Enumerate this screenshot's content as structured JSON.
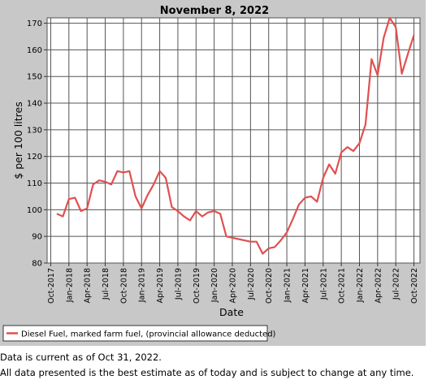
{
  "chart_data": {
    "type": "line",
    "title": "November 8, 2022",
    "xlabel": "Date",
    "ylabel": "$ per 100 litres",
    "ylim": [
      80,
      172
    ],
    "yticks": [
      80,
      90,
      100,
      110,
      120,
      130,
      140,
      150,
      160,
      170
    ],
    "xticks": [
      "Oct-2017",
      "Jan-2018",
      "Apr-2018",
      "Jul-2018",
      "Oct-2018",
      "Jan-2019",
      "Apr-2019",
      "Jul-2019",
      "Oct-2019",
      "Jan-2020",
      "Apr-2020",
      "Jul-2020",
      "Oct-2020",
      "Jan-2021",
      "Apr-2021",
      "Jul-2021",
      "Oct-2021",
      "Jan-2022",
      "Apr-2022",
      "Jul-2022",
      "Oct-2022"
    ],
    "grid": true,
    "legend_position": "bottom",
    "series": [
      {
        "name": "Diesel Fuel, marked farm fuel, (provincial allowance deducted)",
        "color": "#e05050",
        "x": [
          "2017-11",
          "2017-12",
          "2018-01",
          "2018-02",
          "2018-03",
          "2018-04",
          "2018-05",
          "2018-06",
          "2018-07",
          "2018-08",
          "2018-09",
          "2018-10",
          "2018-11",
          "2018-12",
          "2019-01",
          "2019-02",
          "2019-03",
          "2019-04",
          "2019-05",
          "2019-06",
          "2019-07",
          "2019-08",
          "2019-09",
          "2019-10",
          "2019-11",
          "2019-12",
          "2020-01",
          "2020-02",
          "2020-03",
          "2020-04",
          "2020-05",
          "2020-06",
          "2020-07",
          "2020-08",
          "2020-09",
          "2020-10",
          "2020-11",
          "2020-12",
          "2021-01",
          "2021-02",
          "2021-03",
          "2021-04",
          "2021-05",
          "2021-06",
          "2021-07",
          "2021-08",
          "2021-09",
          "2021-10",
          "2021-11",
          "2021-12",
          "2022-01",
          "2022-02",
          "2022-03",
          "2022-04",
          "2022-05",
          "2022-06",
          "2022-07",
          "2022-08",
          "2022-09",
          "2022-10"
        ],
        "values": [
          98.5,
          97.5,
          104,
          104.5,
          99.5,
          100.5,
          109.5,
          111,
          110.5,
          109.5,
          114.5,
          114,
          114.5,
          105,
          100.5,
          105.5,
          109.5,
          114.5,
          112,
          101,
          99.5,
          97.5,
          96,
          99.5,
          97.5,
          99,
          99.5,
          98.5,
          90,
          89.5,
          89,
          88.5,
          88,
          88,
          83.5,
          85.5,
          86,
          88.5,
          91.5,
          96.5,
          102,
          104.5,
          105,
          103,
          112,
          117,
          113.5,
          121.5,
          123.5,
          122,
          125,
          132,
          156.5,
          150.5,
          164.5,
          172,
          168.5,
          151,
          158.5,
          165.5
        ]
      }
    ]
  },
  "notes": {
    "line1": "Data is current as of Oct 31, 2022.",
    "line2": "All data presented is the best estimate as of today and is subject to change at any time."
  }
}
